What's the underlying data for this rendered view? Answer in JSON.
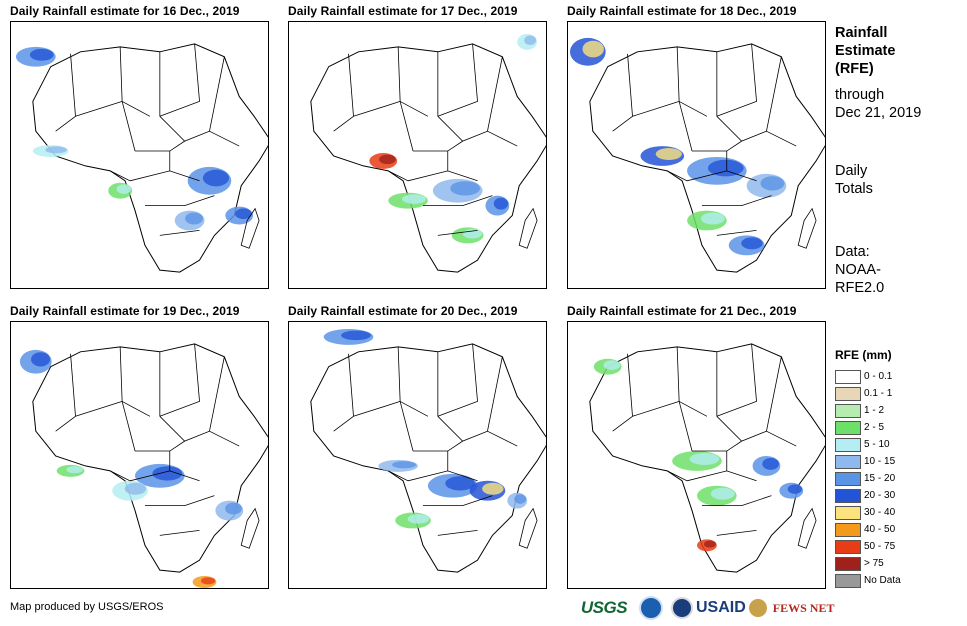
{
  "panels": [
    {
      "title": "Daily Rainfall estimate for 16 Dec., 2019",
      "date": "16 Dec., 2019"
    },
    {
      "title": "Daily Rainfall estimate for 17 Dec., 2019",
      "date": "17 Dec., 2019"
    },
    {
      "title": "Daily Rainfall estimate for 18 Dec., 2019",
      "date": "18 Dec., 2019"
    },
    {
      "title": "Daily Rainfall estimate for 19 Dec., 2019",
      "date": "19 Dec., 2019"
    },
    {
      "title": "Daily Rainfall estimate for 20 Dec., 2019",
      "date": "20 Dec., 2019"
    },
    {
      "title": "Daily Rainfall estimate for 21 Dec., 2019",
      "date": "21 Dec., 2019"
    }
  ],
  "side_info": {
    "title_line1": "Rainfall",
    "title_line2": "Estimate",
    "title_line3": "(RFE)",
    "through": "through",
    "through_date": "Dec 21, 2019",
    "totals_line1": "Daily",
    "totals_line2": "Totals",
    "data_line1": "Data:",
    "data_line2": "NOAA-",
    "data_line3": "RFE2.0"
  },
  "legend": {
    "title": "RFE (mm)",
    "classes": [
      {
        "label": "0 - 0.1",
        "color": "#ffffff"
      },
      {
        "label": "0.1 - 1",
        "color": "#e8d6b8"
      },
      {
        "label": "1 - 2",
        "color": "#b6ecb0"
      },
      {
        "label": "2 - 5",
        "color": "#6ee06a"
      },
      {
        "label": "5 - 10",
        "color": "#b4eef2"
      },
      {
        "label": "10 - 15",
        "color": "#8fb9ec"
      },
      {
        "label": "15 - 20",
        "color": "#5b93e6"
      },
      {
        "label": "20 - 30",
        "color": "#2454d6"
      },
      {
        "label": "30 - 40",
        "color": "#fbe27c"
      },
      {
        "label": "40 - 50",
        "color": "#f39a1c"
      },
      {
        "label": "50 - 75",
        "color": "#e83c16"
      },
      {
        "label": "> 75",
        "color": "#a0201c"
      },
      {
        "label": "No Data",
        "color": "#999999"
      }
    ]
  },
  "credit": "Map produced by USGS/EROS",
  "logos": {
    "usgs": "USGS",
    "usaid": "USAID",
    "fews": "FEWS NET"
  }
}
